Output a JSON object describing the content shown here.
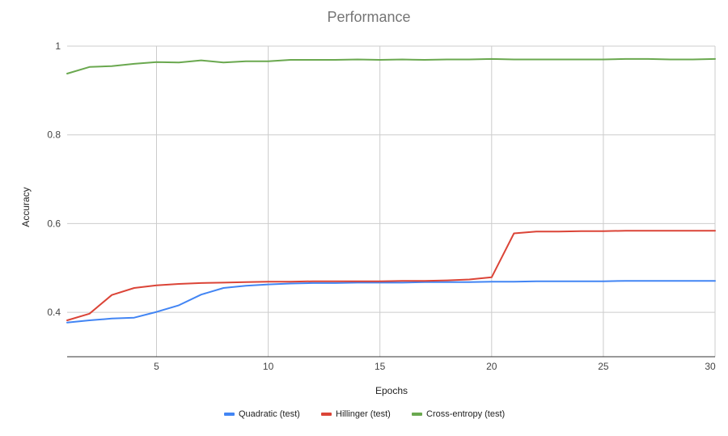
{
  "chart_data": {
    "type": "line",
    "title": "Performance",
    "xlabel": "Epochs",
    "ylabel": "Accuracy",
    "xlim": [
      1,
      30
    ],
    "ylim": [
      0.3,
      1.0
    ],
    "x_ticks": [
      5,
      10,
      15,
      20,
      25,
      30
    ],
    "y_ticks": [
      0.4,
      0.6,
      0.8,
      1
    ],
    "y_tick_labels": [
      "0.4",
      "0.6",
      "0.8",
      "1"
    ],
    "grid": true,
    "legend_position": "bottom",
    "x": [
      1,
      2,
      3,
      4,
      5,
      6,
      7,
      8,
      9,
      10,
      11,
      12,
      13,
      14,
      15,
      16,
      17,
      18,
      19,
      20,
      21,
      22,
      23,
      24,
      25,
      26,
      27,
      28,
      29,
      30
    ],
    "series": [
      {
        "name": "Quadratic (test)",
        "color": "#4285f4",
        "values": [
          0.377,
          0.382,
          0.386,
          0.388,
          0.401,
          0.416,
          0.44,
          0.455,
          0.46,
          0.463,
          0.465,
          0.466,
          0.466,
          0.467,
          0.467,
          0.467,
          0.468,
          0.468,
          0.468,
          0.469,
          0.469,
          0.47,
          0.47,
          0.47,
          0.47,
          0.471,
          0.471,
          0.471,
          0.471,
          0.471
        ]
      },
      {
        "name": "Hillinger (test)",
        "color": "#db4437",
        "values": [
          0.382,
          0.397,
          0.439,
          0.455,
          0.461,
          0.464,
          0.466,
          0.467,
          0.468,
          0.469,
          0.469,
          0.47,
          0.47,
          0.47,
          0.47,
          0.471,
          0.471,
          0.472,
          0.474,
          0.479,
          0.578,
          0.582,
          0.582,
          0.583,
          0.583,
          0.584,
          0.584,
          0.584,
          0.584,
          0.584
        ]
      },
      {
        "name": "Cross-entropy (test)",
        "color": "#6aa84f",
        "values": [
          0.938,
          0.953,
          0.955,
          0.96,
          0.964,
          0.963,
          0.968,
          0.963,
          0.966,
          0.966,
          0.969,
          0.969,
          0.969,
          0.97,
          0.969,
          0.97,
          0.969,
          0.97,
          0.97,
          0.971,
          0.97,
          0.97,
          0.97,
          0.97,
          0.97,
          0.971,
          0.971,
          0.97,
          0.97,
          0.971
        ]
      }
    ]
  }
}
